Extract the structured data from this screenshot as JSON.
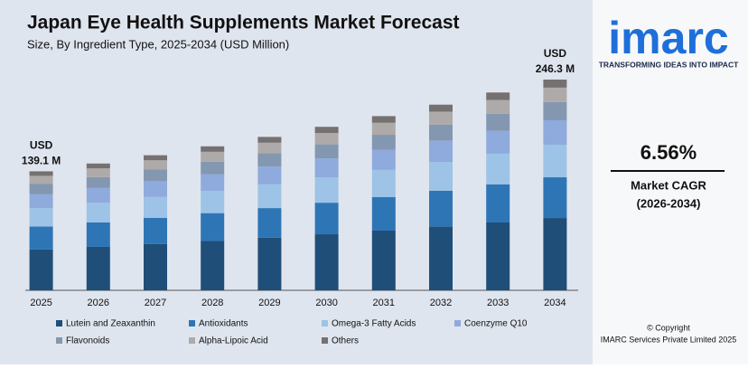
{
  "chart_data": {
    "type": "stacked-bar",
    "title": "Japan Eye Health Supplements Market Forecast",
    "subtitle": "Size, By Ingredient Type, 2025-2034 (USD Million)",
    "categories": [
      "2025",
      "2026",
      "2027",
      "2028",
      "2029",
      "2030",
      "2031",
      "2032",
      "2033",
      "2034"
    ],
    "series": [
      {
        "name": "Lutein and Zeaxanthin",
        "color": "#1f4e79",
        "values": [
          47.7,
          50.8,
          54.2,
          57.7,
          61.5,
          65.5,
          69.8,
          74.4,
          79.3,
          84.5
        ]
      },
      {
        "name": "Antioxidants",
        "color": "#2e75b6",
        "values": [
          26.8,
          28.6,
          30.5,
          32.5,
          34.6,
          36.9,
          39.3,
          41.9,
          44.6,
          47.6
        ]
      },
      {
        "name": "Omega-3 Fatty Acids",
        "color": "#9dc3e6",
        "values": [
          21.6,
          23.0,
          24.5,
          26.1,
          27.8,
          29.6,
          31.6,
          33.6,
          35.8,
          38.1
        ]
      },
      {
        "name": "Coenzyme Q10",
        "color": "#8faadc",
        "values": [
          16.1,
          17.2,
          18.3,
          19.5,
          20.8,
          22.2,
          23.6,
          25.2,
          26.8,
          28.6
        ]
      },
      {
        "name": "Flavonoids",
        "color": "#8497b0",
        "values": [
          12.0,
          12.7,
          13.6,
          14.5,
          15.4,
          16.4,
          17.5,
          18.7,
          19.9,
          21.2
        ]
      },
      {
        "name": "Alpha-Lipoic Acid",
        "color": "#aeaaaa",
        "values": [
          9.6,
          10.2,
          10.9,
          11.6,
          12.4,
          13.2,
          14.0,
          15.0,
          16.0,
          16.9
        ]
      },
      {
        "name": "Others",
        "color": "#767171",
        "values": [
          5.3,
          5.7,
          5.9,
          6.4,
          6.8,
          7.3,
          7.8,
          8.2,
          8.8,
          9.4
        ]
      }
    ],
    "annotations": [
      {
        "lines": [
          "USD",
          "139.1 M"
        ]
      },
      {
        "lines": [
          "USD",
          "246.3 M"
        ]
      }
    ],
    "ylim": [
      0,
      250
    ]
  },
  "sidebar": {
    "logo": "imarc",
    "tagline": "TRANSFORMING IDEAS INTO IMPACT",
    "cagr": "6.56%",
    "cagr_label": "Market CAGR",
    "cagr_period": "(2026-2034)",
    "copyright": "© Copyright",
    "company": "IMARC Services Private Limited 2025"
  }
}
